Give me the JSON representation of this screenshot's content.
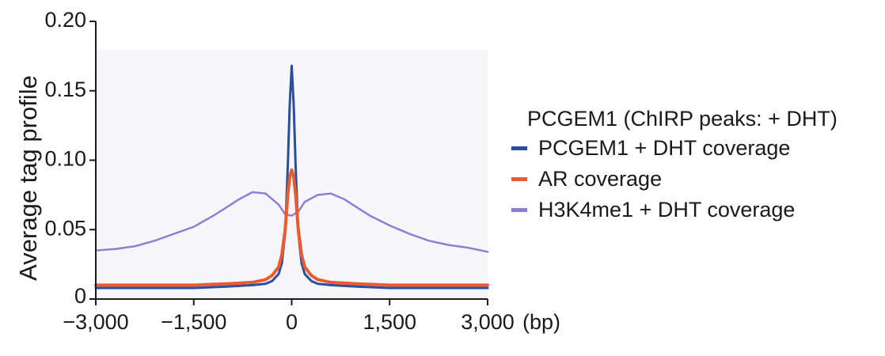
{
  "chart_data": {
    "type": "line",
    "title": "",
    "xlabel": "",
    "x_unit": "(bp)",
    "ylabel": "Average tag profile",
    "xlim": [
      -3000,
      3000
    ],
    "ylim": [
      0,
      0.2
    ],
    "xticks": [
      "−3,000",
      "−1,500",
      "0",
      "1,500",
      "3,000"
    ],
    "xtick_values": [
      -3000,
      -1500,
      0,
      1500,
      3000
    ],
    "yticks": [
      "0",
      "0.05",
      "0.10",
      "0.15",
      "0.20"
    ],
    "ytick_values": [
      0,
      0.05,
      0.1,
      0.15,
      0.2
    ],
    "grid": false,
    "legend": {
      "title": "PCGEM1 (ChIRP peaks: + DHT)",
      "position": "right"
    },
    "series": [
      {
        "name": "PCGEM1 + DHT coverage",
        "color": "#2a4fa0",
        "x": [
          -3000,
          -2500,
          -2000,
          -1500,
          -1000,
          -600,
          -400,
          -300,
          -200,
          -150,
          -100,
          -60,
          -30,
          0,
          30,
          60,
          100,
          150,
          200,
          300,
          400,
          600,
          1000,
          1500,
          2000,
          2500,
          3000
        ],
        "y": [
          0.008,
          0.008,
          0.008,
          0.008,
          0.009,
          0.01,
          0.011,
          0.013,
          0.018,
          0.026,
          0.048,
          0.095,
          0.14,
          0.168,
          0.14,
          0.095,
          0.048,
          0.026,
          0.018,
          0.013,
          0.011,
          0.01,
          0.009,
          0.008,
          0.008,
          0.008,
          0.008
        ]
      },
      {
        "name": "AR coverage",
        "color": "#ee5a2f",
        "x": [
          -3000,
          -2500,
          -2000,
          -1500,
          -1000,
          -600,
          -400,
          -300,
          -200,
          -150,
          -100,
          -60,
          -30,
          0,
          30,
          60,
          100,
          150,
          200,
          300,
          400,
          600,
          1000,
          1500,
          2000,
          2500,
          3000
        ],
        "y": [
          0.01,
          0.01,
          0.01,
          0.01,
          0.011,
          0.012,
          0.014,
          0.017,
          0.023,
          0.032,
          0.05,
          0.075,
          0.088,
          0.093,
          0.088,
          0.075,
          0.05,
          0.032,
          0.023,
          0.017,
          0.014,
          0.012,
          0.011,
          0.01,
          0.01,
          0.01,
          0.01
        ]
      },
      {
        "name": "H3K4me1 + DHT coverage",
        "color": "#8c7fd4",
        "x": [
          -3000,
          -2700,
          -2400,
          -2100,
          -1800,
          -1500,
          -1200,
          -1000,
          -800,
          -600,
          -400,
          -200,
          -100,
          0,
          100,
          200,
          400,
          600,
          800,
          1000,
          1200,
          1500,
          1800,
          2100,
          2400,
          2700,
          3000
        ],
        "y": [
          0.035,
          0.036,
          0.038,
          0.042,
          0.047,
          0.052,
          0.06,
          0.066,
          0.072,
          0.077,
          0.076,
          0.068,
          0.061,
          0.06,
          0.063,
          0.07,
          0.075,
          0.076,
          0.072,
          0.066,
          0.06,
          0.053,
          0.047,
          0.042,
          0.039,
          0.037,
          0.034
        ]
      }
    ]
  }
}
